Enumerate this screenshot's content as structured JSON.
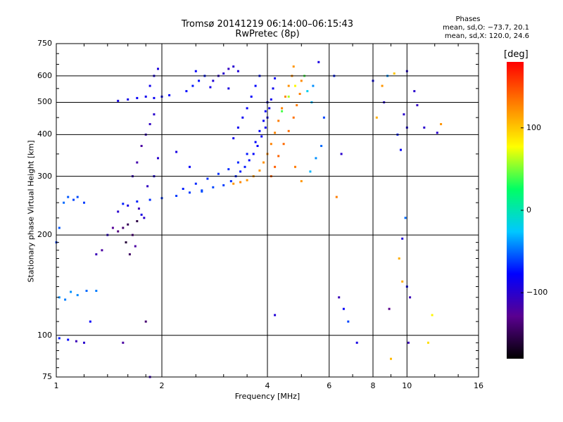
{
  "header": {
    "title_line1": "Tromsø 20141219 06:14:00–06:15:43",
    "title_line2": "RwPretec (8p)"
  },
  "phases": {
    "heading": "Phases",
    "o_mode": "mean, sd,O: −73.7, 20.1",
    "x_mode": "mean, sd,X: 120.0, 24.6"
  },
  "colorbar": {
    "unit_label": "[deg]",
    "ticks": [
      "100",
      "0",
      "−100"
    ],
    "tick_values": [
      100,
      0,
      -100
    ],
    "range": [
      -180,
      180
    ],
    "colormap": [
      "#000000",
      "#5a0090",
      "#0000ff",
      "#00c8ff",
      "#00ff64",
      "#ffff00",
      "#ff8000",
      "#ff0000"
    ]
  },
  "chart_data": {
    "type": "scatter",
    "title": "Tromsø 20141219 06:14:00–06:15:43",
    "subtitle": "RwPretec (8p)",
    "xlabel": "Frequency [MHz]",
    "ylabel": "Stationary phase Virtual Height [km]",
    "x_scale": "log",
    "y_scale": "log",
    "xlim": [
      1,
      16
    ],
    "ylim": [
      75,
      750
    ],
    "x_ticks": [
      "1",
      "2",
      "4",
      "6",
      "8",
      "10",
      "16"
    ],
    "x_tick_values": [
      1,
      2,
      4,
      6,
      8,
      10,
      16
    ],
    "y_ticks": [
      "75",
      "100",
      "200",
      "300",
      "400",
      "500",
      "600",
      "750"
    ],
    "y_tick_values": [
      75,
      100,
      200,
      300,
      400,
      500,
      600,
      750
    ],
    "grid": true,
    "color_by": "phase (deg)",
    "series": [
      {
        "points": [
          [
            1.0,
            190,
            -60
          ],
          [
            1.02,
            210,
            -55
          ],
          [
            1.05,
            250,
            -50
          ],
          [
            1.08,
            260,
            -55
          ],
          [
            1.12,
            255,
            -60
          ],
          [
            1.15,
            260,
            -58
          ],
          [
            1.2,
            250,
            -62
          ],
          [
            1.02,
            130,
            -40
          ],
          [
            1.06,
            128,
            -45
          ],
          [
            1.1,
            135,
            -40
          ],
          [
            1.15,
            132,
            -42
          ],
          [
            1.22,
            136,
            -50
          ],
          [
            1.3,
            136,
            -45
          ],
          [
            1.02,
            98,
            -70
          ],
          [
            1.08,
            97,
            -75
          ],
          [
            1.14,
            96,
            -110
          ],
          [
            1.2,
            95,
            -100
          ],
          [
            1.5,
            205,
            -135
          ],
          [
            1.55,
            210,
            -140
          ],
          [
            1.6,
            215,
            -150
          ],
          [
            1.65,
            200,
            -130
          ],
          [
            1.68,
            185,
            -120
          ],
          [
            1.62,
            175,
            -145
          ],
          [
            1.58,
            190,
            -160
          ],
          [
            1.7,
            220,
            -155
          ],
          [
            1.72,
            240,
            -110
          ],
          [
            1.75,
            230,
            -90
          ],
          [
            1.78,
            225,
            -100
          ],
          [
            1.6,
            245,
            -90
          ],
          [
            1.5,
            235,
            -100
          ],
          [
            1.65,
            300,
            -110
          ],
          [
            1.7,
            330,
            -115
          ],
          [
            1.75,
            370,
            -120
          ],
          [
            1.8,
            400,
            -110
          ],
          [
            1.85,
            430,
            -105
          ],
          [
            1.9,
            460,
            -100
          ],
          [
            1.82,
            280,
            -105
          ],
          [
            1.9,
            300,
            -95
          ],
          [
            1.95,
            340,
            -100
          ],
          [
            1.5,
            505,
            -90
          ],
          [
            1.6,
            510,
            -88
          ],
          [
            1.7,
            515,
            -80
          ],
          [
            1.8,
            520,
            -85
          ],
          [
            1.9,
            515,
            -82
          ],
          [
            2.0,
            520,
            -80
          ],
          [
            2.1,
            525,
            -78
          ],
          [
            1.85,
            560,
            -85
          ],
          [
            1.9,
            600,
            -90
          ],
          [
            1.95,
            630,
            -92
          ],
          [
            2.35,
            540,
            -75
          ],
          [
            2.45,
            560,
            -72
          ],
          [
            2.55,
            580,
            -74
          ],
          [
            2.65,
            600,
            -72
          ],
          [
            2.5,
            620,
            -78
          ],
          [
            2.8,
            580,
            -95
          ],
          [
            2.9,
            600,
            -100
          ],
          [
            3.0,
            610,
            -100
          ],
          [
            3.1,
            630,
            -105
          ],
          [
            3.2,
            640,
            -98
          ],
          [
            3.3,
            620,
            -95
          ],
          [
            1.55,
            248,
            -70
          ],
          [
            1.7,
            252,
            -68
          ],
          [
            1.85,
            255,
            -66
          ],
          [
            2.0,
            258,
            -64
          ],
          [
            2.2,
            262,
            -62
          ],
          [
            2.4,
            268,
            -62
          ],
          [
            2.6,
            272,
            -60
          ],
          [
            2.8,
            278,
            -60
          ],
          [
            3.0,
            282,
            -62
          ],
          [
            3.15,
            290,
            -65
          ],
          [
            3.25,
            300,
            -68
          ],
          [
            3.35,
            310,
            -70
          ],
          [
            3.45,
            320,
            -72
          ],
          [
            3.55,
            335,
            -74
          ],
          [
            3.65,
            350,
            -76
          ],
          [
            3.75,
            370,
            -78
          ],
          [
            3.85,
            395,
            -80
          ],
          [
            3.95,
            420,
            -82
          ],
          [
            4.0,
            450,
            -85
          ],
          [
            4.05,
            480,
            -86
          ],
          [
            4.1,
            510,
            -85
          ],
          [
            4.15,
            550,
            -84
          ],
          [
            4.2,
            590,
            -82
          ],
          [
            2.3,
            275,
            -70
          ],
          [
            2.5,
            285,
            -68
          ],
          [
            2.7,
            295,
            -66
          ],
          [
            2.9,
            305,
            -65
          ],
          [
            3.1,
            315,
            -66
          ],
          [
            3.3,
            330,
            -68
          ],
          [
            3.5,
            350,
            -72
          ],
          [
            3.7,
            380,
            -76
          ],
          [
            3.8,
            410,
            -78
          ],
          [
            3.9,
            440,
            -80
          ],
          [
            3.95,
            470,
            -82
          ],
          [
            4.0,
            500,
            -84
          ],
          [
            3.6,
            520,
            -78
          ],
          [
            3.5,
            480,
            -80
          ],
          [
            3.4,
            450,
            -82
          ],
          [
            3.3,
            420,
            -84
          ],
          [
            3.2,
            390,
            -86
          ],
          [
            3.7,
            560,
            -76
          ],
          [
            3.8,
            600,
            -74
          ],
          [
            3.2,
            285,
            120
          ],
          [
            3.35,
            288,
            125
          ],
          [
            3.5,
            292,
            120
          ],
          [
            3.65,
            300,
            118
          ],
          [
            3.8,
            312,
            120
          ],
          [
            3.9,
            330,
            122
          ],
          [
            4.0,
            350,
            125
          ],
          [
            4.1,
            375,
            128
          ],
          [
            4.2,
            405,
            126
          ],
          [
            4.3,
            440,
            130
          ],
          [
            4.4,
            480,
            128
          ],
          [
            4.5,
            520,
            125
          ],
          [
            4.6,
            560,
            122
          ],
          [
            4.7,
            600,
            125
          ],
          [
            4.75,
            640,
            120
          ],
          [
            4.1,
            300,
            140
          ],
          [
            4.2,
            320,
            142
          ],
          [
            4.3,
            345,
            140
          ],
          [
            4.45,
            375,
            138
          ],
          [
            4.6,
            410,
            136
          ],
          [
            4.75,
            450,
            135
          ],
          [
            4.85,
            490,
            130
          ],
          [
            4.95,
            530,
            128
          ],
          [
            5.0,
            580,
            125
          ],
          [
            4.4,
            470,
            40
          ],
          [
            4.6,
            520,
            60
          ],
          [
            4.8,
            560,
            80
          ],
          [
            5.1,
            600,
            40
          ],
          [
            5.2,
            540,
            -20
          ],
          [
            5.35,
            500,
            -30
          ],
          [
            5.4,
            560,
            -40
          ],
          [
            5.6,
            660,
            -90
          ],
          [
            5.8,
            450,
            -60
          ],
          [
            6.2,
            600,
            -70
          ],
          [
            6.3,
            260,
            130
          ],
          [
            6.5,
            350,
            -100
          ],
          [
            6.4,
            130,
            -110
          ],
          [
            6.6,
            120,
            -80
          ],
          [
            6.8,
            110,
            -60
          ],
          [
            7.2,
            95,
            -90
          ],
          [
            8.0,
            580,
            -80
          ],
          [
            8.2,
            450,
            110
          ],
          [
            8.5,
            560,
            120
          ],
          [
            8.6,
            500,
            -100
          ],
          [
            8.8,
            600,
            -40
          ],
          [
            9.2,
            610,
            100
          ],
          [
            9.4,
            400,
            -70
          ],
          [
            9.6,
            360,
            -80
          ],
          [
            9.8,
            460,
            -100
          ],
          [
            10.0,
            620,
            -95
          ],
          [
            10.0,
            420,
            -90
          ],
          [
            9.7,
            195,
            -95
          ],
          [
            9.9,
            225,
            -50
          ],
          [
            9.5,
            170,
            110
          ],
          [
            9.7,
            145,
            110
          ],
          [
            10.0,
            140,
            -80
          ],
          [
            10.2,
            130,
            -110
          ],
          [
            8.9,
            120,
            -130
          ],
          [
            9.0,
            85,
            105
          ],
          [
            10.1,
            95,
            -110
          ],
          [
            10.5,
            540,
            -100
          ],
          [
            10.7,
            490,
            -105
          ],
          [
            11.2,
            420,
            -100
          ],
          [
            11.5,
            95,
            90
          ],
          [
            11.8,
            115,
            80
          ],
          [
            12.2,
            405,
            -100
          ],
          [
            12.5,
            430,
            120
          ],
          [
            3.1,
            550,
            -92
          ],
          [
            2.75,
            555,
            -88
          ],
          [
            2.6,
            270,
            -58
          ],
          [
            1.3,
            175,
            -110
          ],
          [
            1.35,
            180,
            -120
          ],
          [
            1.4,
            200,
            -100
          ],
          [
            1.45,
            210,
            -125
          ],
          [
            1.25,
            110,
            -80
          ],
          [
            1.55,
            95,
            -120
          ],
          [
            1.8,
            110,
            -140
          ],
          [
            1.85,
            75,
            -110
          ],
          [
            2.2,
            355,
            -90
          ],
          [
            2.4,
            320,
            -80
          ],
          [
            4.2,
            115,
            -95
          ],
          [
            4.8,
            320,
            130
          ],
          [
            5.0,
            290,
            120
          ],
          [
            5.3,
            310,
            -30
          ],
          [
            5.5,
            340,
            -40
          ],
          [
            5.7,
            370,
            -50
          ]
        ]
      }
    ]
  }
}
